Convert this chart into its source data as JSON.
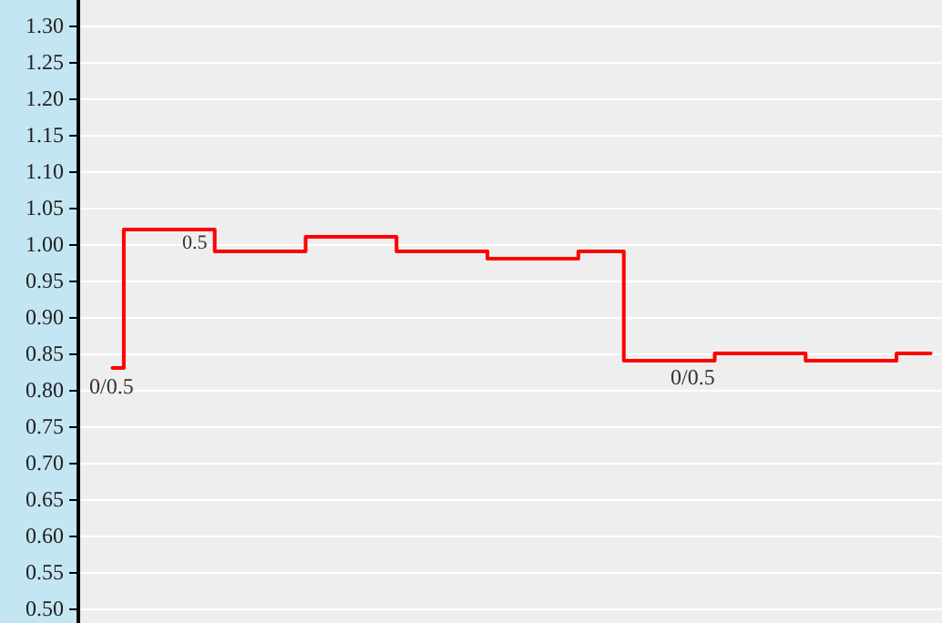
{
  "chart_data": {
    "type": "step",
    "categories": [
      null,
      null,
      null,
      null,
      null,
      null,
      null,
      null,
      null,
      null,
      null,
      null,
      null,
      null,
      null,
      null,
      null,
      null,
      null,
      null,
      null,
      null,
      null,
      null,
      null,
      null,
      null,
      null,
      null,
      null,
      null,
      null,
      null,
      null,
      null,
      null,
      null
    ],
    "series": [
      {
        "color": "#ff0000",
        "values": [
          0.83,
          1.02,
          1.02,
          1.02,
          1.02,
          0.99,
          0.99,
          0.99,
          0.99,
          1.01,
          1.01,
          1.01,
          1.01,
          0.99,
          0.99,
          0.99,
          0.99,
          0.98,
          0.98,
          0.98,
          0.98,
          0.99,
          0.99,
          0.84,
          0.84,
          0.84,
          0.84,
          0.85,
          0.85,
          0.85,
          0.85,
          0.84,
          0.84,
          0.84,
          0.84,
          0.85,
          0.85
        ]
      }
    ],
    "ylim": [
      0.48,
      1.335
    ],
    "yticks": [
      {
        "value": 0.5,
        "label": "0.50"
      },
      {
        "value": 0.55,
        "label": "0.55"
      },
      {
        "value": 0.6,
        "label": "0.60"
      },
      {
        "value": 0.65,
        "label": "0.65"
      },
      {
        "value": 0.7,
        "label": "0.70"
      },
      {
        "value": 0.75,
        "label": "0.75"
      },
      {
        "value": 0.8,
        "label": "0.80"
      },
      {
        "value": 0.85,
        "label": "0.85"
      },
      {
        "value": 0.9,
        "label": "0.90"
      },
      {
        "value": 0.95,
        "label": "0.95"
      },
      {
        "value": 1.0,
        "label": "1.00"
      },
      {
        "value": 1.05,
        "label": "1.05"
      },
      {
        "value": 1.1,
        "label": "1.10"
      },
      {
        "value": 1.15,
        "label": "1.15"
      },
      {
        "value": 1.2,
        "label": "1.20"
      },
      {
        "value": 1.25,
        "label": "1.25"
      },
      {
        "value": 1.3,
        "label": "1.30"
      }
    ],
    "grid": "y",
    "tick_labels": "y",
    "marker": "none",
    "line_style": "solid",
    "annotations": [
      "0/0.5",
      "0.5",
      "0/0.5"
    ]
  }
}
